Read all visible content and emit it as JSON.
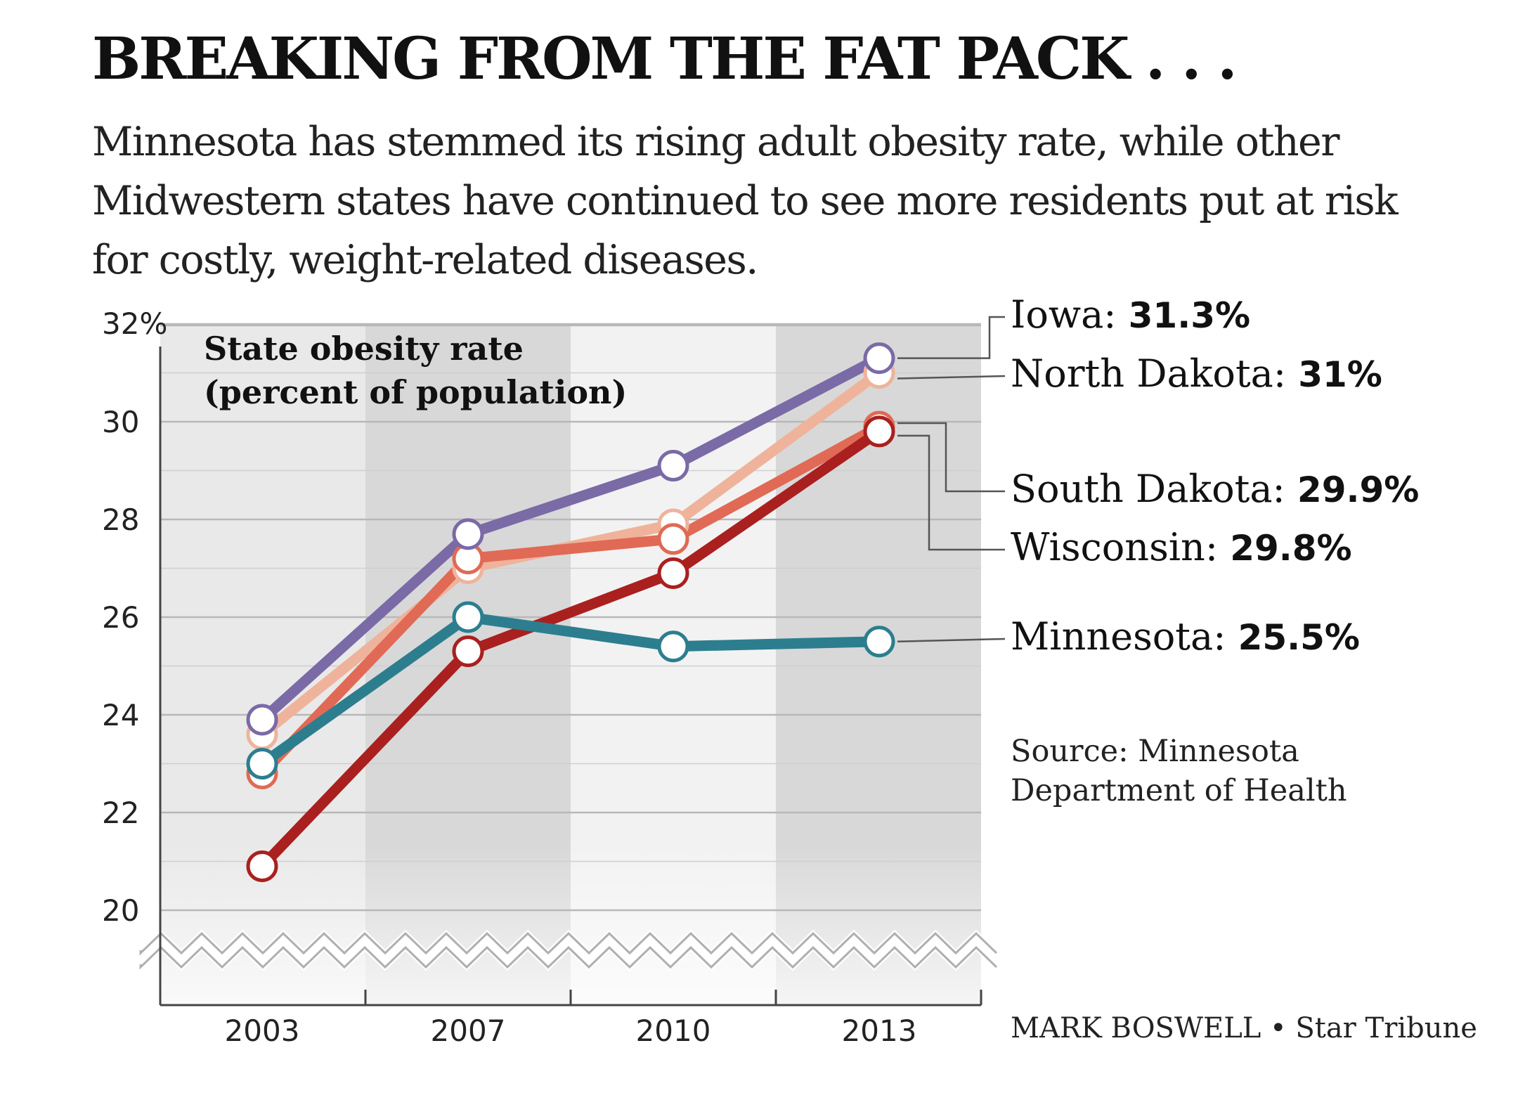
{
  "headline": "BREAKING FROM THE FAT PACK . . .",
  "subtitle": "Minnesota has stemmed its rising adult obesity rate, while other Midwestern states have continued to see more residents put at risk for costly, weight-related diseases.",
  "chart_data": {
    "type": "line",
    "title": "State obesity rate\n(percent of population)",
    "x": [
      "2003",
      "2007",
      "2010",
      "2013"
    ],
    "ylim": [
      20,
      32
    ],
    "y_ticks": [
      "32%",
      "30",
      "28",
      "26",
      "24",
      "22",
      "20"
    ],
    "y_tick_values": [
      32,
      30,
      28,
      26,
      24,
      22,
      20
    ],
    "axis_break": true,
    "grid": true,
    "series": [
      {
        "name": "Iowa",
        "end_label": "31.3%",
        "color": "#7a6aa6",
        "values": [
          23.9,
          27.7,
          29.1,
          31.3
        ]
      },
      {
        "name": "North Dakota",
        "end_label": "31%",
        "color": "#efb39b",
        "values": [
          23.6,
          27.0,
          27.9,
          31.0
        ]
      },
      {
        "name": "South Dakota",
        "end_label": "29.9%",
        "color": "#e06a55",
        "values": [
          22.8,
          27.2,
          27.6,
          29.9
        ]
      },
      {
        "name": "Wisconsin",
        "end_label": "29.8%",
        "color": "#a9201f",
        "values": [
          20.9,
          25.3,
          26.9,
          29.8
        ]
      },
      {
        "name": "Minnesota",
        "end_label": "25.5%",
        "color": "#2c7e8f",
        "values": [
          23.0,
          26.0,
          25.4,
          25.5
        ]
      }
    ],
    "source": "Source: Minnesota\nDepartment of Health",
    "credit": "MARK BOSWELL • Star Tribune"
  }
}
